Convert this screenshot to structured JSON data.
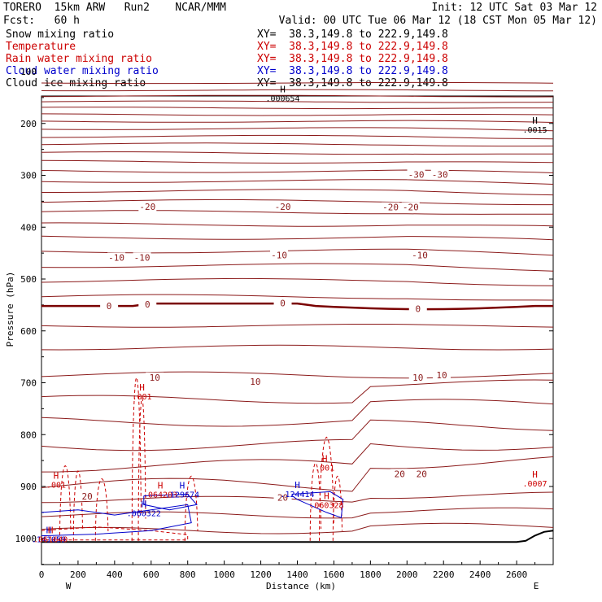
{
  "header": {
    "left_line1": "TORERO  15km ARW   Run2    NCAR/MMM",
    "left_line2": "Fcst:   60 h",
    "right_line1": "Init: 12 UTC Sat 03 Mar 12",
    "right_line2": "Valid: 00 UTC Tue 06 Mar 12 (18 CST Mon 05 Mar 12)"
  },
  "legend": [
    {
      "label": "Snow mixing ratio",
      "color": "#000000",
      "xy": "XY=  38.3,149.8 to 222.9,149.8"
    },
    {
      "label": "Temperature",
      "color": "#cc0000",
      "xy": "XY=  38.3,149.8 to 222.9,149.8"
    },
    {
      "label": "Rain water mixing ratio",
      "color": "#cc0000",
      "xy": "XY=  38.3,149.8 to 222.9,149.8"
    },
    {
      "label": "Cloud water mixing ratio",
      "color": "#0000cc",
      "xy": "XY=  38.3,149.8 to 222.9,149.8"
    },
    {
      "label": "Cloud ice mixing ratio",
      "color": "#000000",
      "xy": "XY=  38.3,149.8 to 222.9,149.8"
    }
  ],
  "chart_data": {
    "type": "contour",
    "xlabel": "Distance (km)",
    "ylabel": "Pressure (hPa)",
    "xlim": [
      0,
      2800
    ],
    "ylim": [
      1050,
      100
    ],
    "x_ticks": [
      0,
      200,
      400,
      600,
      800,
      1000,
      1200,
      1400,
      1600,
      1800,
      2000,
      2200,
      2400,
      2600
    ],
    "y_ticks": [
      100,
      200,
      300,
      400,
      500,
      600,
      700,
      800,
      900,
      1000
    ],
    "x_end_labels": [
      "W",
      "E"
    ],
    "temperature_labels": [
      {
        "text": "-30",
        "x": 2050,
        "p": 300
      },
      {
        "text": "-30",
        "x": 2180,
        "p": 300
      },
      {
        "text": "-20",
        "x": 580,
        "p": 362
      },
      {
        "text": "-20",
        "x": 1320,
        "p": 362
      },
      {
        "text": "-20",
        "x": 1910,
        "p": 363
      },
      {
        "text": "-20",
        "x": 2020,
        "p": 363
      },
      {
        "text": "-10",
        "x": 410,
        "p": 460
      },
      {
        "text": "-10",
        "x": 550,
        "p": 460
      },
      {
        "text": "-10",
        "x": 1300,
        "p": 455
      },
      {
        "text": "-10",
        "x": 2070,
        "p": 455
      },
      {
        "text": "0",
        "x": 370,
        "p": 553
      },
      {
        "text": "0",
        "x": 580,
        "p": 550
      },
      {
        "text": "0",
        "x": 1320,
        "p": 548
      },
      {
        "text": "0",
        "x": 2060,
        "p": 559
      },
      {
        "text": "10",
        "x": 620,
        "p": 691
      },
      {
        "text": "10",
        "x": 1170,
        "p": 699
      },
      {
        "text": "10",
        "x": 2060,
        "p": 691
      },
      {
        "text": "10",
        "x": 2190,
        "p": 687
      },
      {
        "text": "20",
        "x": 250,
        "p": 920
      },
      {
        "text": "20",
        "x": 1320,
        "p": 923
      },
      {
        "text": "20",
        "x": 1960,
        "p": 877
      },
      {
        "text": "20",
        "x": 2080,
        "p": 877
      }
    ],
    "extrema_labels": [
      {
        "text": "H",
        "value": ".000654",
        "x": 1320,
        "p": 140,
        "color": "#000000"
      },
      {
        "text": "H",
        "value": ".0015",
        "x": 2700,
        "p": 200,
        "color": "#000000"
      },
      {
        "text": "H",
        "value": ".0007",
        "x": 2700,
        "p": 883,
        "color": "#cc0000"
      },
      {
        "text": "H",
        "value": ".001",
        "x": 80,
        "p": 885,
        "color": "#cc0000"
      },
      {
        "text": "H",
        "value": ".001",
        "x": 550,
        "p": 715,
        "color": "#cc0000"
      },
      {
        "text": "H",
        "value": ".001",
        "x": 1550,
        "p": 852,
        "color": "#cc0000"
      },
      {
        "text": "H",
        "value": ".064203",
        "x": 650,
        "p": 904,
        "color": "#cc0000"
      },
      {
        "text": "H",
        "value": ".129674",
        "x": 770,
        "p": 904,
        "color": "#0000cc"
      },
      {
        "text": "H",
        "value": ".060322",
        "x": 560,
        "p": 940,
        "color": "#0000cc"
      },
      {
        "text": "H",
        "value": ".141059",
        "x": 40,
        "p": 990,
        "color": "#0000cc"
      },
      {
        "text": "H",
        "value": ".061640",
        "x": 50,
        "p": 990,
        "color": "#cc0000"
      },
      {
        "text": "H",
        "value": ".124414",
        "x": 1400,
        "p": 903,
        "color": "#0000cc"
      },
      {
        "text": "H",
        "value": ".060328",
        "x": 1560,
        "p": 924,
        "color": "#cc0000"
      }
    ]
  }
}
